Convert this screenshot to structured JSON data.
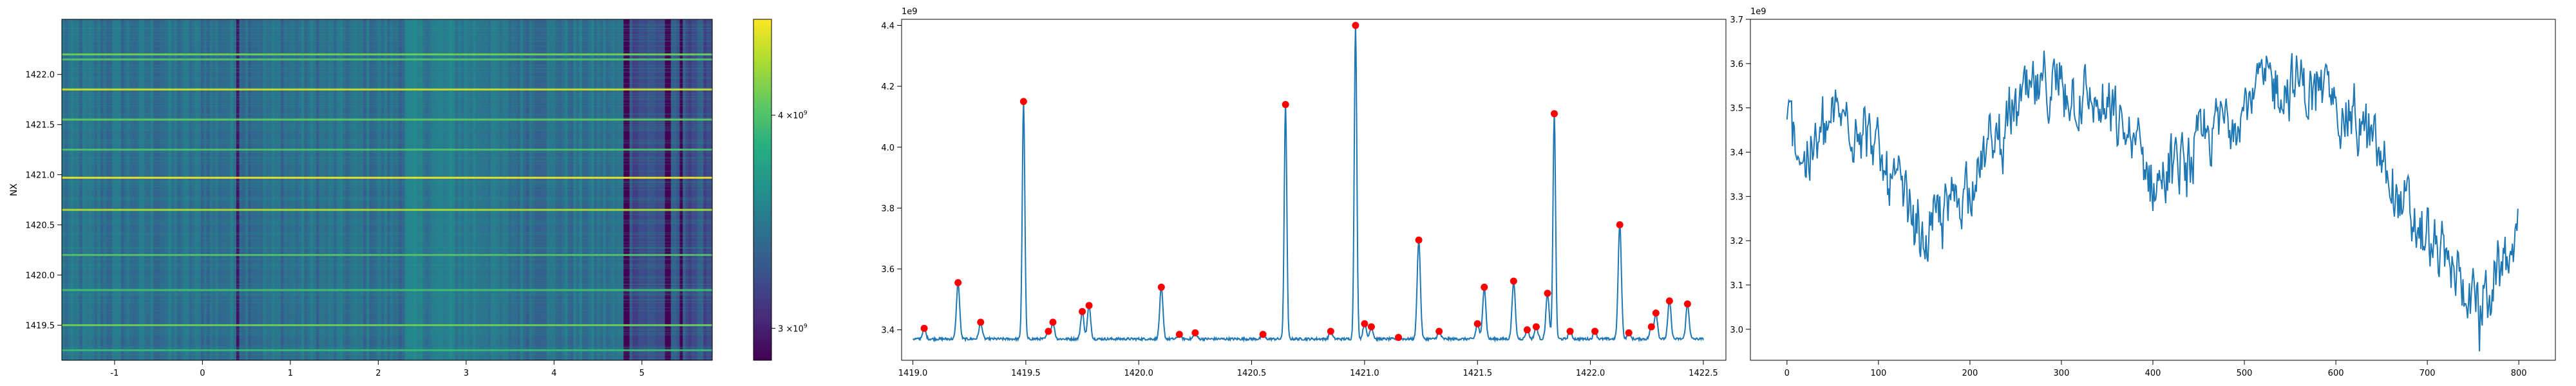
{
  "chart_data": [
    {
      "type": "heatmap",
      "ylabel": "NX",
      "xlim": [
        -1.6,
        5.8
      ],
      "ylim": [
        1419.15,
        1422.55
      ],
      "xticks": [
        "-1",
        "0",
        "1",
        "2",
        "3",
        "4",
        "5"
      ],
      "xtick_values": [
        -1,
        0,
        1,
        2,
        3,
        4,
        5
      ],
      "yticks": [
        "1419.5",
        "1420.0",
        "1420.5",
        "1421.0",
        "1421.5",
        "1422.0"
      ],
      "ytick_values": [
        1419.5,
        1420.0,
        1420.5,
        1421.0,
        1421.5,
        1422.0
      ],
      "colormap": "viridis",
      "colorbar": {
        "ticks": [
          {
            "value": 3000000000.0,
            "mantissa": "3",
            "base": "×10",
            "exp": "9"
          },
          {
            "value": 4000000000.0,
            "mantissa": "4",
            "base": "×10",
            "exp": "9"
          }
        ],
        "range": [
          2850000000.0,
          4450000000.0
        ]
      },
      "bright_rows": [
        {
          "y": 1422.2,
          "intensity": 0.55
        },
        {
          "y": 1422.15,
          "intensity": 0.45
        },
        {
          "y": 1421.85,
          "intensity": 0.85
        },
        {
          "y": 1421.55,
          "intensity": 0.5
        },
        {
          "y": 1421.25,
          "intensity": 0.45
        },
        {
          "y": 1420.97,
          "intensity": 0.95
        },
        {
          "y": 1420.65,
          "intensity": 0.75
        },
        {
          "y": 1420.2,
          "intensity": 0.45
        },
        {
          "y": 1419.85,
          "intensity": 0.4
        },
        {
          "y": 1419.5,
          "intensity": 0.55
        },
        {
          "y": 1419.25,
          "intensity": 0.35
        }
      ],
      "dark_columns": [
        {
          "x": 0.4,
          "intensity": 0.25
        },
        {
          "x": 4.82,
          "intensity": 0.3
        },
        {
          "x": 5.3,
          "intensity": 0.45
        },
        {
          "x": 5.45,
          "intensity": 0.4
        }
      ]
    },
    {
      "type": "line",
      "offset_label": "1e9",
      "xlim": [
        1418.95,
        1422.6
      ],
      "ylim": [
        3.3,
        4.42
      ],
      "xticks": [
        "1419.0",
        "1419.5",
        "1420.0",
        "1420.5",
        "1421.0",
        "1421.5",
        "1422.0",
        "1422.5"
      ],
      "xtick_values": [
        1419.0,
        1419.5,
        1420.0,
        1420.5,
        1421.0,
        1421.5,
        1422.0,
        1422.5
      ],
      "yticks": [
        "3.4",
        "3.6",
        "3.8",
        "4.0",
        "4.2",
        "4.4"
      ],
      "ytick_values": [
        3.4,
        3.6,
        3.8,
        4.0,
        4.2,
        4.4
      ],
      "baseline": 3.37,
      "peaks": [
        {
          "x": 1419.05,
          "y": 3.405
        },
        {
          "x": 1419.2,
          "y": 3.555
        },
        {
          "x": 1419.3,
          "y": 3.425
        },
        {
          "x": 1419.49,
          "y": 4.15
        },
        {
          "x": 1419.6,
          "y": 3.395
        },
        {
          "x": 1419.62,
          "y": 3.425
        },
        {
          "x": 1419.75,
          "y": 3.46
        },
        {
          "x": 1419.78,
          "y": 3.48
        },
        {
          "x": 1420.1,
          "y": 3.54
        },
        {
          "x": 1420.18,
          "y": 3.385
        },
        {
          "x": 1420.25,
          "y": 3.39
        },
        {
          "x": 1420.55,
          "y": 3.385
        },
        {
          "x": 1420.65,
          "y": 4.14
        },
        {
          "x": 1420.85,
          "y": 3.395
        },
        {
          "x": 1420.96,
          "y": 4.4
        },
        {
          "x": 1421.0,
          "y": 3.42
        },
        {
          "x": 1421.03,
          "y": 3.41
        },
        {
          "x": 1421.15,
          "y": 3.375
        },
        {
          "x": 1421.24,
          "y": 3.695
        },
        {
          "x": 1421.33,
          "y": 3.395
        },
        {
          "x": 1421.5,
          "y": 3.42
        },
        {
          "x": 1421.53,
          "y": 3.54
        },
        {
          "x": 1421.66,
          "y": 3.56
        },
        {
          "x": 1421.72,
          "y": 3.4
        },
        {
          "x": 1421.76,
          "y": 3.41
        },
        {
          "x": 1421.81,
          "y": 3.52
        },
        {
          "x": 1421.84,
          "y": 4.11
        },
        {
          "x": 1421.91,
          "y": 3.395
        },
        {
          "x": 1422.02,
          "y": 3.395
        },
        {
          "x": 1422.13,
          "y": 3.745
        },
        {
          "x": 1422.17,
          "y": 3.39
        },
        {
          "x": 1422.27,
          "y": 3.41
        },
        {
          "x": 1422.29,
          "y": 3.455
        },
        {
          "x": 1422.35,
          "y": 3.495
        },
        {
          "x": 1422.43,
          "y": 3.485
        }
      ],
      "series": [
        {
          "color": "#1f77b4"
        }
      ],
      "marker_color": "#ff0000"
    },
    {
      "type": "line",
      "offset_label": "1e9",
      "xlim": [
        -40,
        840
      ],
      "ylim": [
        2.93,
        3.7
      ],
      "xticks": [
        "0",
        "100",
        "200",
        "300",
        "400",
        "500",
        "600",
        "700",
        "800"
      ],
      "xtick_values": [
        0,
        100,
        200,
        300,
        400,
        500,
        600,
        700,
        800
      ],
      "yticks": [
        "3.0",
        "3.1",
        "3.2",
        "3.3",
        "3.4",
        "3.5",
        "3.6",
        "3.7"
      ],
      "ytick_values": [
        3.0,
        3.1,
        3.2,
        3.3,
        3.4,
        3.5,
        3.6,
        3.7
      ],
      "num_points": 800,
      "trend": [
        [
          0,
          3.48
        ],
        [
          20,
          3.38
        ],
        [
          50,
          3.47
        ],
        [
          80,
          3.48
        ],
        [
          100,
          3.38
        ],
        [
          130,
          3.28
        ],
        [
          150,
          3.2
        ],
        [
          180,
          3.28
        ],
        [
          220,
          3.4
        ],
        [
          260,
          3.52
        ],
        [
          300,
          3.55
        ],
        [
          340,
          3.5
        ],
        [
          380,
          3.42
        ],
        [
          400,
          3.33
        ],
        [
          440,
          3.38
        ],
        [
          480,
          3.48
        ],
        [
          520,
          3.55
        ],
        [
          560,
          3.55
        ],
        [
          600,
          3.52
        ],
        [
          640,
          3.42
        ],
        [
          680,
          3.25
        ],
        [
          720,
          3.15
        ],
        [
          760,
          3.05
        ],
        [
          790,
          3.18
        ],
        [
          800,
          3.2
        ]
      ],
      "min_point": {
        "x": 757,
        "y": 2.95
      },
      "series": [
        {
          "color": "#1f77b4"
        }
      ]
    }
  ]
}
